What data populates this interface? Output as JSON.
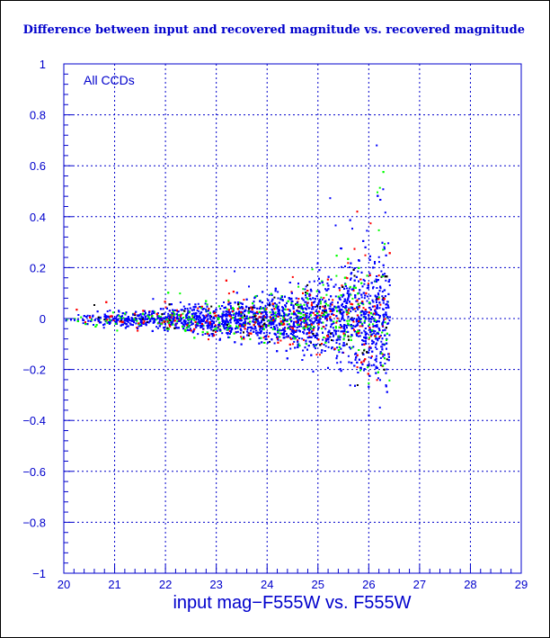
{
  "chart_data": {
    "type": "scatter",
    "title": "Difference between input and recovered magnitude vs. recovered magnitude",
    "xlabel": "input mag−F555W vs. F555W",
    "ylabel": "",
    "annotation": "All CCDs",
    "xlim": [
      20,
      29
    ],
    "ylim": [
      -1,
      1
    ],
    "x_ticks": [
      "20",
      "21",
      "22",
      "23",
      "24",
      "25",
      "26",
      "27",
      "28",
      "29"
    ],
    "y_ticks": [
      "1",
      "0.8",
      "0.6",
      "0.4",
      "0.2",
      "0",
      "−0.2",
      "−0.4",
      "−0.6",
      "−0.8",
      "−1"
    ],
    "grid": true,
    "description_of_distribution": {
      "center_y": 0.0,
      "spread_at_x": [
        {
          "x": 20.0,
          "spread": 0.015
        },
        {
          "x": 22.0,
          "spread": 0.04
        },
        {
          "x": 24.0,
          "spread": 0.08
        },
        {
          "x": 25.0,
          "spread": 0.13
        },
        {
          "x": 26.0,
          "spread": 0.22
        },
        {
          "x": 26.4,
          "spread": 0.28
        }
      ],
      "x_cutoff": 26.4
    },
    "series": [
      {
        "color": "#0000ff"
      },
      {
        "color": "#00ff00"
      },
      {
        "color": "#ff0000"
      },
      {
        "color": "#000000"
      }
    ]
  }
}
